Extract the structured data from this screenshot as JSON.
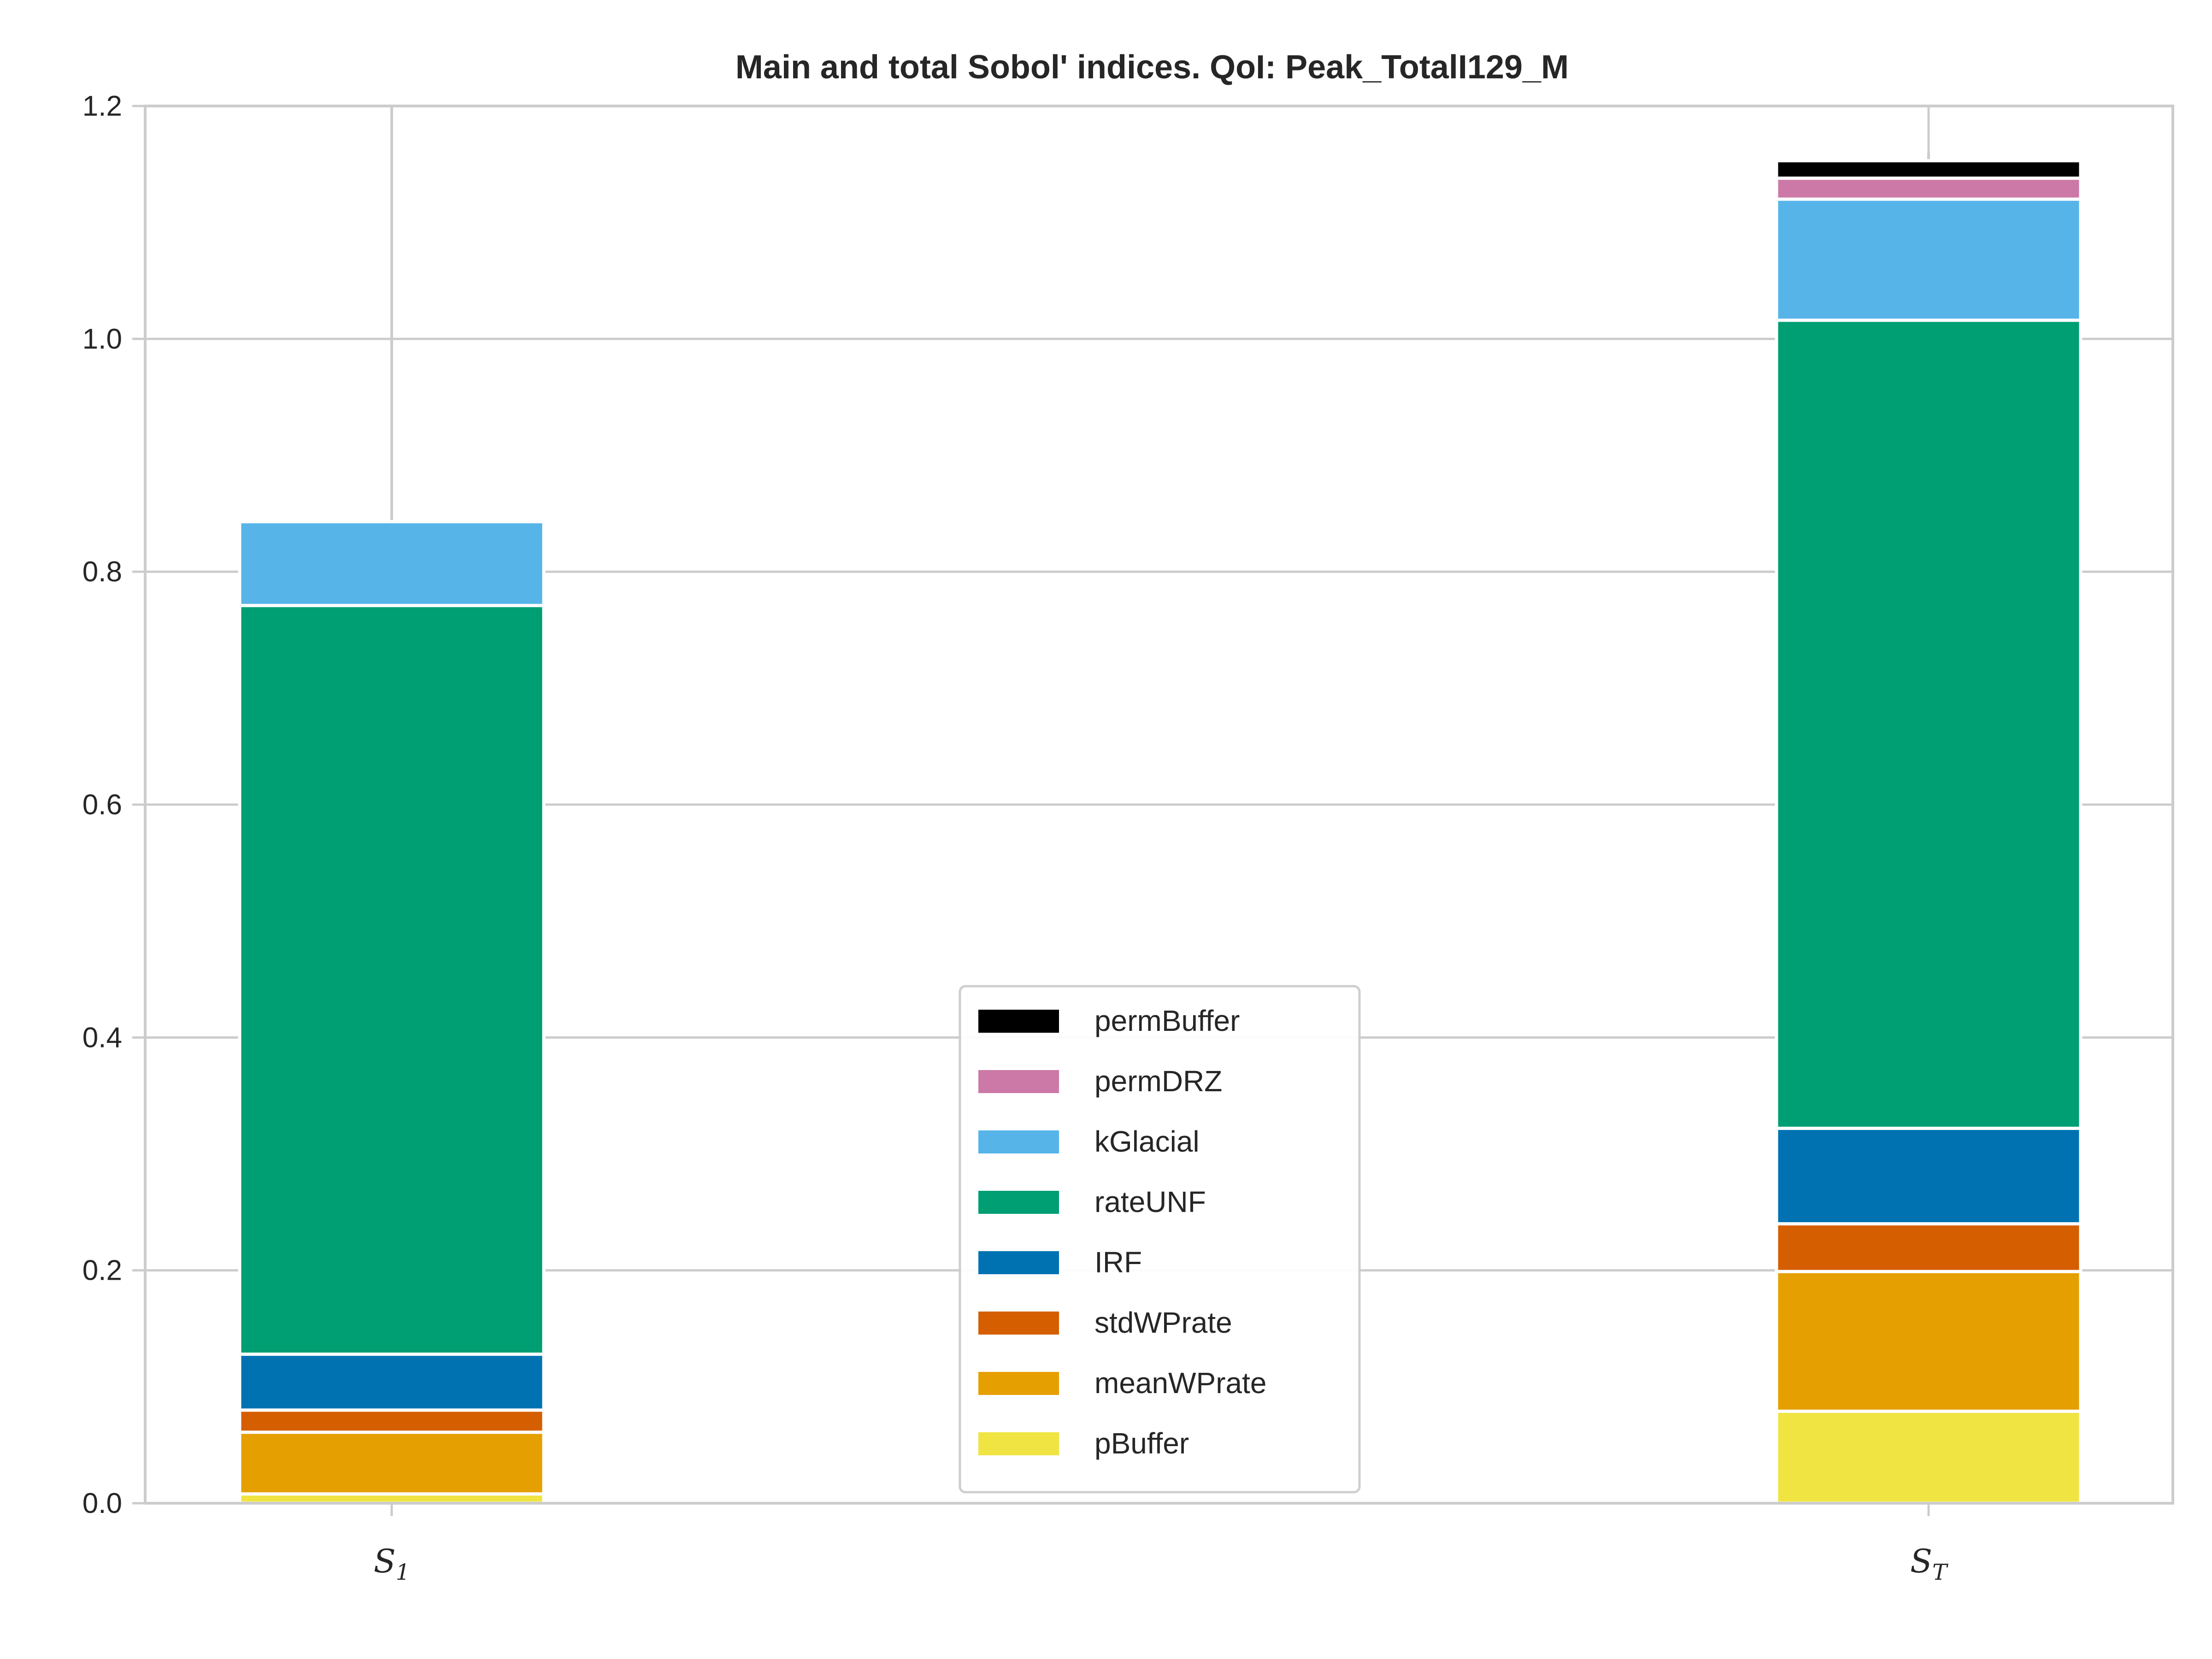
{
  "chart_data": {
    "type": "bar",
    "stacked": true,
    "title": "Main and total Sobol' indices. QoI: Peak_TotalI129_M",
    "xlabel": "",
    "ylabel": "",
    "ylim": [
      0,
      1.2
    ],
    "yticks": [
      "0.0",
      "0.2",
      "0.4",
      "0.6",
      "0.8",
      "1.0",
      "1.2"
    ],
    "grid": true,
    "legend_position": "lower center",
    "categories": [
      {
        "base": "S",
        "sub": "1"
      },
      {
        "base": "S",
        "sub": "T"
      }
    ],
    "series": [
      {
        "name": "pBuffer",
        "color": "#F0E442",
        "values": [
          0.008,
          0.079
        ]
      },
      {
        "name": "meanWPrate",
        "color": "#E69F00",
        "values": [
          0.053,
          0.12
        ]
      },
      {
        "name": "stdWPrate",
        "color": "#D55E00",
        "values": [
          0.019,
          0.041
        ]
      },
      {
        "name": "IRF",
        "color": "#0072B2",
        "values": [
          0.048,
          0.082
        ]
      },
      {
        "name": "rateUNF",
        "color": "#009E73",
        "values": [
          0.643,
          0.694
        ]
      },
      {
        "name": "kGlacial",
        "color": "#56B4E9",
        "values": [
          0.072,
          0.104
        ]
      },
      {
        "name": "permDRZ",
        "color": "#CC79A7",
        "values": [
          0.0,
          0.018
        ]
      },
      {
        "name": "permBuffer",
        "color": "#000000",
        "values": [
          0.0,
          0.015
        ]
      }
    ],
    "error_top": [
      1.2,
      1.16
    ]
  }
}
